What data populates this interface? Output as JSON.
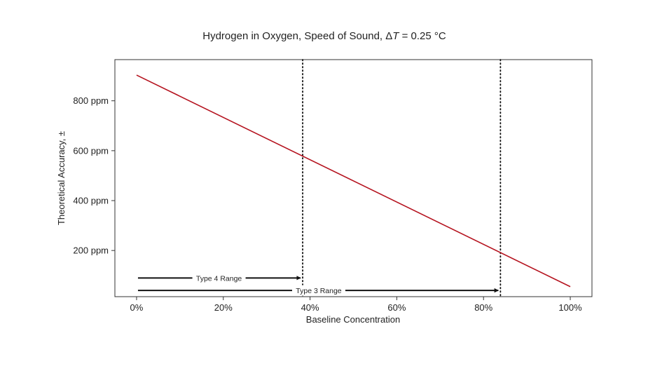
{
  "chart_data": {
    "type": "line",
    "title": {
      "prefix": "Hydrogen in Oxygen, Speed of Sound, Δ",
      "italic": "T",
      "suffix": " = 0.25 °C"
    },
    "xlabel": "Baseline Concentration",
    "ylabel": "Theoretical Accuracy, ±",
    "xlim": [
      -5,
      105
    ],
    "ylim": [
      15,
      965
    ],
    "x_ticks": [
      {
        "value": 0,
        "label": "0%"
      },
      {
        "value": 20,
        "label": "20%"
      },
      {
        "value": 40,
        "label": "40%"
      },
      {
        "value": 60,
        "label": "60%"
      },
      {
        "value": 80,
        "label": "80%"
      },
      {
        "value": 100,
        "label": "100%"
      }
    ],
    "y_ticks": [
      {
        "value": 200,
        "label": "200 ppm"
      },
      {
        "value": 400,
        "label": "400 ppm"
      },
      {
        "value": 600,
        "label": "600 ppm"
      },
      {
        "value": 800,
        "label": "800 ppm"
      }
    ],
    "grid": false,
    "series": [
      {
        "color": "#b5131f",
        "x": [
          0,
          100
        ],
        "y": [
          903,
          55
        ]
      }
    ],
    "vlines": [
      {
        "x": 38.3,
        "style": "dotted",
        "color": "#111111"
      },
      {
        "x": 83.9,
        "style": "dotted",
        "color": "#111111"
      }
    ],
    "range_arrows": [
      {
        "label": "Type 4 Range",
        "x_start": 0,
        "x_end": 38.3,
        "y": 90,
        "label_x": 19
      },
      {
        "label": "Type 3 Range",
        "x_start": 0,
        "x_end": 83.9,
        "y": 40,
        "label_x": 42
      }
    ]
  }
}
